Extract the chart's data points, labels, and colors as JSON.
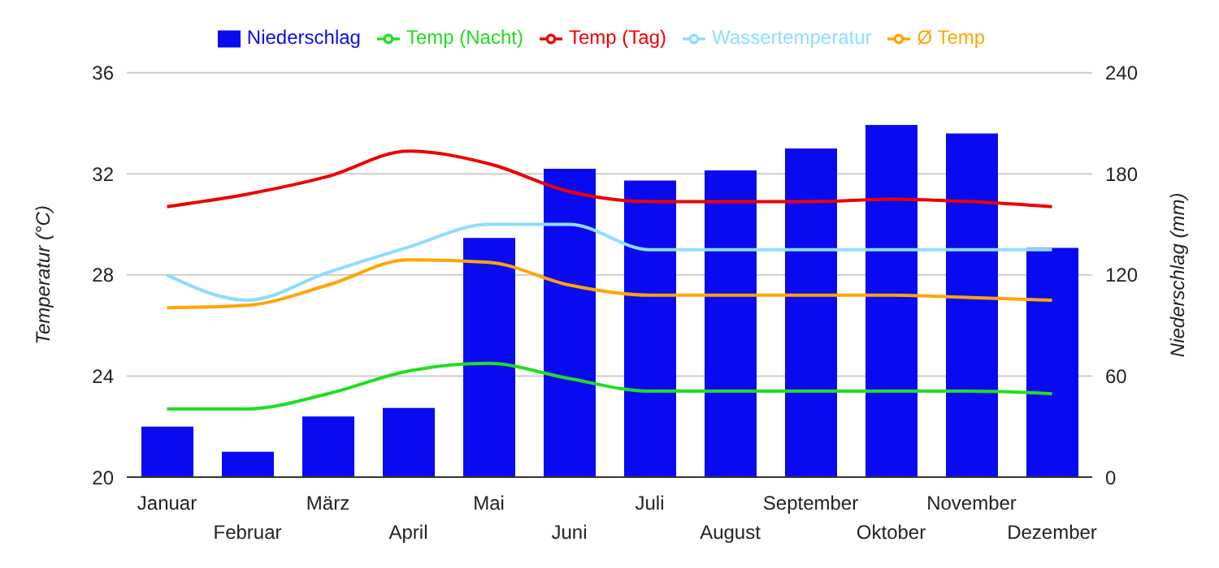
{
  "chart_data": {
    "type": "line",
    "categories": [
      "Januar",
      "Februar",
      "März",
      "April",
      "Mai",
      "Juni",
      "Juli",
      "August",
      "September",
      "Oktober",
      "November",
      "Dezember"
    ],
    "ylabel": "Temperatur (°C)",
    "y2label": "Niederschlag (mm)",
    "ylim": [
      20,
      36
    ],
    "yticks": [
      20,
      24,
      28,
      32,
      36
    ],
    "y2lim": [
      0,
      240
    ],
    "y2ticks": [
      0,
      60,
      120,
      180,
      240
    ],
    "grid": "y",
    "legend": "top",
    "marker": "none",
    "line_style": "solid",
    "series": [
      {
        "name": "Niederschlag",
        "type": "bar",
        "axis": "y2",
        "color": "#0a0af0",
        "values": [
          30,
          15,
          36,
          41,
          142,
          183,
          176,
          182,
          195,
          209,
          204,
          136
        ]
      },
      {
        "name": "Wassertemperatur",
        "color": "#8fdcff",
        "values": [
          28.0,
          27.0,
          28.1,
          29.1,
          30.0,
          30.0,
          29.0,
          29.0,
          29.0,
          29.0,
          29.0,
          29.0
        ]
      },
      {
        "name": "Temp (Tag)",
        "color": "#ee0000",
        "values": [
          30.7,
          31.2,
          31.9,
          32.9,
          32.4,
          31.3,
          30.9,
          30.9,
          30.9,
          31.0,
          30.9,
          30.7
        ]
      },
      {
        "name": "Ø Temp",
        "color": "#ffa500",
        "values": [
          26.7,
          26.8,
          27.6,
          28.6,
          28.5,
          27.6,
          27.2,
          27.2,
          27.2,
          27.2,
          27.1,
          27.0
        ]
      },
      {
        "name": "Temp (Nacht)",
        "color": "#22dd22",
        "values": [
          22.7,
          22.7,
          23.3,
          24.2,
          24.5,
          23.9,
          23.4,
          23.4,
          23.4,
          23.4,
          23.4,
          23.3
        ]
      }
    ]
  }
}
